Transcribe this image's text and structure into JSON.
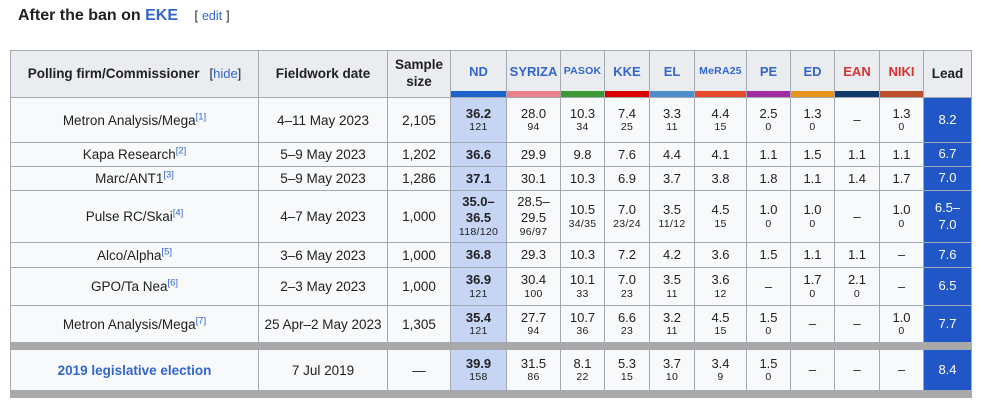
{
  "title": {
    "prefix": "After the ban on",
    "link": "EKE",
    "edit_open": "[",
    "edit_label": "edit",
    "edit_close": "]"
  },
  "colors": {
    "link_blue": "#3366CC",
    "red_link": "#D73333",
    "border": "#A2A9B1",
    "header_bg": "#EAECF0",
    "cell_bg": "#F8F9FA",
    "nd_cell_bg": "#C5D5F3",
    "lead_bg": "#2056C5",
    "separator": "#A9A9A9"
  },
  "table": {
    "firm_header": "Polling firm/Commissioner",
    "hide_open": "[",
    "hide_label": "hide",
    "hide_close": "]",
    "date_header": "Fieldwork date",
    "sample_header": "Sample size",
    "lead_header": "Lead",
    "parties": [
      {
        "label": "ND",
        "color": "#1C63CB",
        "text_color": "#3366CC",
        "small": false
      },
      {
        "label": "SYRIZA",
        "color": "#E9808E",
        "text_color": "#3366CC",
        "small": false
      },
      {
        "label": "PASOK",
        "color": "#3D9934",
        "text_color": "#3366CC",
        "small": true
      },
      {
        "label": "KKE",
        "color": "#DD0000",
        "text_color": "#3366CC",
        "small": false
      },
      {
        "label": "EL",
        "color": "#4B8FCB",
        "text_color": "#3366CC",
        "small": false
      },
      {
        "label": "MeRA25",
        "color": "#E54B2B",
        "text_color": "#3366CC",
        "small": true
      },
      {
        "label": "PE",
        "color": "#A02BA3",
        "text_color": "#3366CC",
        "small": false
      },
      {
        "label": "ED",
        "color": "#E8941C",
        "text_color": "#3366CC",
        "small": false
      },
      {
        "label": "EAN",
        "color": "#10386B",
        "text_color": "#D73333",
        "small": false
      },
      {
        "label": "NIKI",
        "color": "#BB4F2C",
        "text_color": "#D73333",
        "small": false
      }
    ],
    "rows": [
      {
        "firm": "Metron Analysis/Mega",
        "ref": "[1]",
        "link": false,
        "date": "4–11 May 2023",
        "sample": "2,105",
        "cells": [
          {
            "v": "36.2",
            "s": "121"
          },
          {
            "v": "28.0",
            "s": "94"
          },
          {
            "v": "10.3",
            "s": "34"
          },
          {
            "v": "7.4",
            "s": "25"
          },
          {
            "v": "3.3",
            "s": "11"
          },
          {
            "v": "4.4",
            "s": "15"
          },
          {
            "v": "2.5",
            "s": "0"
          },
          {
            "v": "1.3",
            "s": "0"
          },
          {
            "v": "–"
          },
          {
            "v": "1.3",
            "s": "0"
          }
        ],
        "lead": "8.2"
      },
      {
        "firm": "Kapa Research",
        "ref": "[2]",
        "link": false,
        "date": "5–9 May 2023",
        "sample": "1,202",
        "cells": [
          {
            "v": "36.6"
          },
          {
            "v": "29.9"
          },
          {
            "v": "9.8"
          },
          {
            "v": "7.6"
          },
          {
            "v": "4.4"
          },
          {
            "v": "4.1"
          },
          {
            "v": "1.1"
          },
          {
            "v": "1.5"
          },
          {
            "v": "1.1"
          },
          {
            "v": "1.1"
          }
        ],
        "lead": "6.7"
      },
      {
        "firm": "Marc/ANT1",
        "ref": "[3]",
        "link": false,
        "date": "5–9 May 2023",
        "sample": "1,286",
        "cells": [
          {
            "v": "37.1"
          },
          {
            "v": "30.1"
          },
          {
            "v": "10.3"
          },
          {
            "v": "6.9"
          },
          {
            "v": "3.7"
          },
          {
            "v": "3.8"
          },
          {
            "v": "1.8"
          },
          {
            "v": "1.1"
          },
          {
            "v": "1.4"
          },
          {
            "v": "1.7"
          }
        ],
        "lead": "7.0"
      },
      {
        "firm": "Pulse RC/Skai",
        "ref": "[4]",
        "link": false,
        "date": "4–7 May 2023",
        "sample": "1,000",
        "cells": [
          {
            "v": "35.0–",
            "v2": "36.5",
            "s": "118/120"
          },
          {
            "v": "28.5–",
            "v2": "29.5",
            "s": "96/97"
          },
          {
            "v": "10.5",
            "s": "34/35"
          },
          {
            "v": "7.0",
            "s": "23/24"
          },
          {
            "v": "3.5",
            "s": "11/12"
          },
          {
            "v": "4.5",
            "s": "15"
          },
          {
            "v": "1.0",
            "s": "0"
          },
          {
            "v": "1.0",
            "s": "0"
          },
          {
            "v": "–"
          },
          {
            "v": "1.0",
            "s": "0"
          }
        ],
        "lead": "6.5–",
        "lead2": "7.0"
      },
      {
        "firm": "Alco/Alpha",
        "ref": "[5]",
        "link": false,
        "date": "3–6 May 2023",
        "sample": "1,000",
        "cells": [
          {
            "v": "36.8"
          },
          {
            "v": "29.3"
          },
          {
            "v": "10.3"
          },
          {
            "v": "7.2"
          },
          {
            "v": "4.2"
          },
          {
            "v": "3.6"
          },
          {
            "v": "1.5"
          },
          {
            "v": "1.1"
          },
          {
            "v": "1.1"
          },
          {
            "v": "–"
          }
        ],
        "lead": "7.6"
      },
      {
        "firm": "GPO/Ta Nea",
        "ref": "[6]",
        "link": false,
        "date": "2–3 May 2023",
        "sample": "1,000",
        "cells": [
          {
            "v": "36.9",
            "s": "121"
          },
          {
            "v": "30.4",
            "s": "100"
          },
          {
            "v": "10.1",
            "s": "33"
          },
          {
            "v": "7.0",
            "s": "23"
          },
          {
            "v": "3.5",
            "s": "11"
          },
          {
            "v": "3.6",
            "s": "12"
          },
          {
            "v": "–"
          },
          {
            "v": "1.7",
            "s": "0"
          },
          {
            "v": "2.1",
            "s": "0"
          },
          {
            "v": "–"
          }
        ],
        "lead": "6.5"
      },
      {
        "firm": "Metron Analysis/Mega",
        "ref": "[7]",
        "link": false,
        "date": "25 Apr–2 May 2023",
        "sample": "1,305",
        "cells": [
          {
            "v": "35.4",
            "s": "121"
          },
          {
            "v": "27.7",
            "s": "94"
          },
          {
            "v": "10.7",
            "s": "36"
          },
          {
            "v": "6.6",
            "s": "23"
          },
          {
            "v": "3.2",
            "s": "11"
          },
          {
            "v": "4.5",
            "s": "15"
          },
          {
            "v": "1.5",
            "s": "0"
          },
          {
            "v": "–"
          },
          {
            "v": "–"
          },
          {
            "v": "1.0",
            "s": "0"
          }
        ],
        "lead": "7.7",
        "sep_after": true
      },
      {
        "firm": "2019 legislative election",
        "ref": "",
        "link": true,
        "date": "7 Jul 2019",
        "sample": "—",
        "cells": [
          {
            "v": "39.9",
            "s": "158"
          },
          {
            "v": "31.5",
            "s": "86"
          },
          {
            "v": "8.1",
            "s": "22"
          },
          {
            "v": "5.3",
            "s": "15"
          },
          {
            "v": "3.7",
            "s": "10"
          },
          {
            "v": "3.4",
            "s": "9"
          },
          {
            "v": "1.5",
            "s": "0"
          },
          {
            "v": "–"
          },
          {
            "v": "–"
          },
          {
            "v": "–"
          }
        ],
        "lead": "8.4",
        "sep_after": true
      }
    ]
  }
}
